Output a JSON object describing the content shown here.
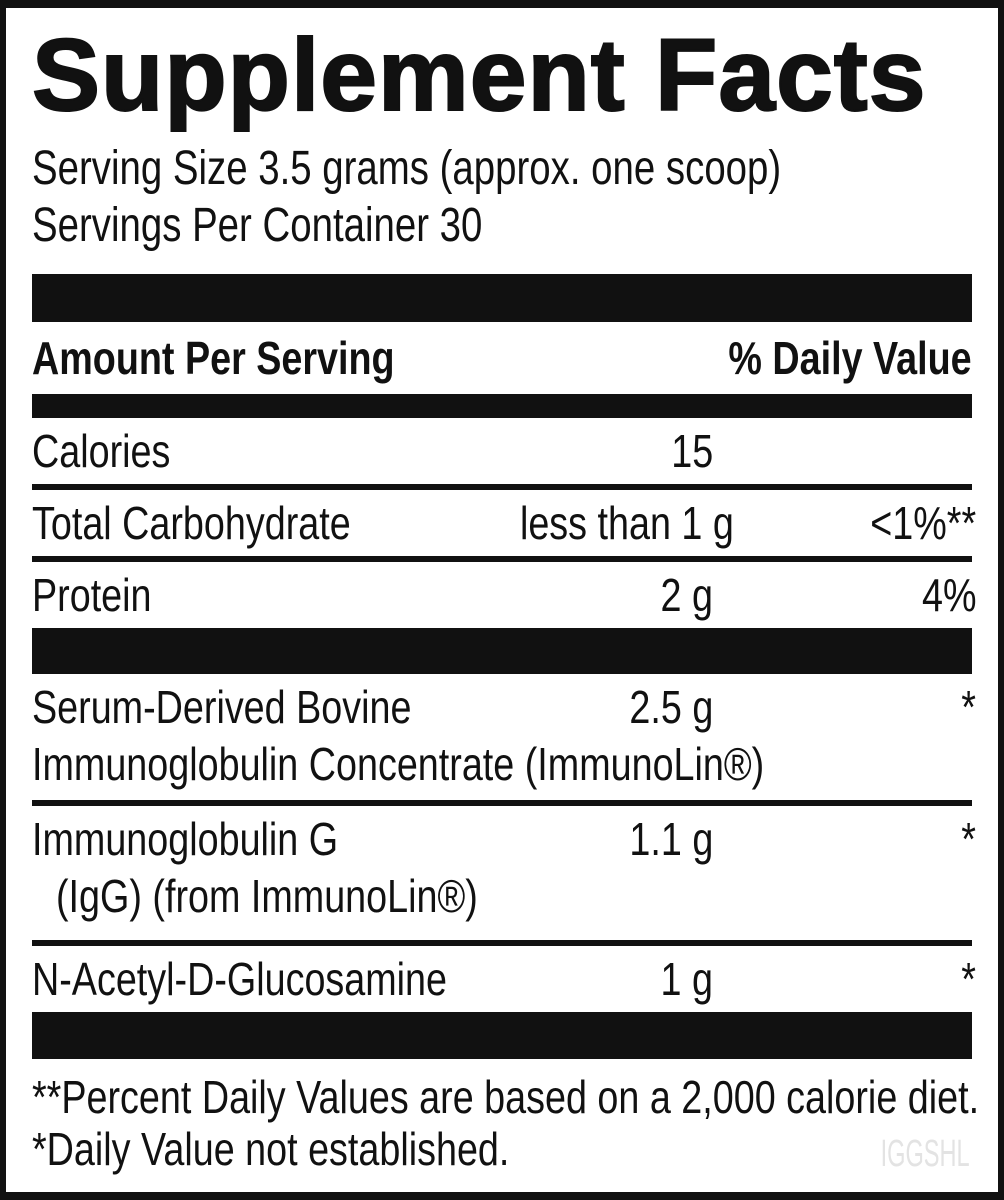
{
  "label": {
    "title": "Supplement Facts",
    "serving_size": "Serving Size 3.5 grams (approx. one scoop)",
    "servings_per_container": "Servings Per Container 30",
    "header": {
      "amount_per_serving": "Amount Per Serving",
      "percent_daily_value": "% Daily Value"
    },
    "rows": [
      {
        "name": "Calories",
        "amount": "15",
        "dv": ""
      },
      {
        "name": "Total Carbohydrate",
        "amount": "less than 1 g",
        "dv": "<1%**"
      },
      {
        "name": "Protein",
        "amount": "2 g",
        "dv": "4%"
      },
      {
        "name": "Serum-Derived Bovine",
        "name_line2": "Immunoglobulin Concentrate (ImmunoLin®)",
        "amount": "2.5 g",
        "dv": "*"
      },
      {
        "name": "Immunoglobulin G",
        "name_line2": "(IgG) (from ImmunoLin®)",
        "amount": "1.1 g",
        "dv": "*"
      },
      {
        "name": "N-Acetyl-D-Glucosamine",
        "amount": "1 g",
        "dv": "*"
      }
    ],
    "footnotes": [
      "**Percent Daily Values are based on a 2,000 calorie diet.",
      "*Daily Value not established."
    ],
    "watermark": "IGGSHL",
    "colors": {
      "ink": "#111111",
      "background": "#ffffff",
      "watermark": "#e3e3e3"
    }
  }
}
